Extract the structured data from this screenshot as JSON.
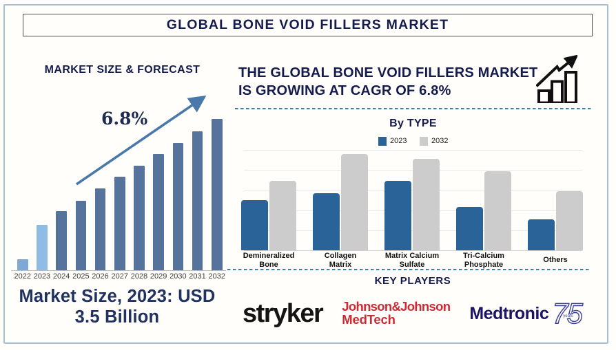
{
  "page": {
    "title": "GLOBAL BONE VOID FILLERS MARKET",
    "background_color": "#fffefa",
    "frame_border_color": "#a3c0d4",
    "accent_navy": "#141b4d",
    "dashed_divider_color": "#3e7da6"
  },
  "left_panel": {
    "heading": "MARKET SIZE & FORECAST",
    "cagr_annotation": "6.8%",
    "caption": "Market Size, 2023: USD 3.5 Billion",
    "trend_arrow_color": "#4879aa"
  },
  "right_panel": {
    "heading_line1": "THE GLOBAL BONE VOID FILLERS MARKET",
    "heading_line2": "IS GROWING AT CAGR OF 6.8%",
    "by_type_title": "By TYPE",
    "key_players_title": "KEY PLAYERS",
    "key_players": [
      {
        "name": "stryker",
        "color": "#141414"
      },
      {
        "name": "Johnson & Johnson MedTech",
        "line1": "Johnson&Johnson",
        "line2": "MedTech",
        "color": "#cf2a33"
      },
      {
        "name": "Medtronic 75 years",
        "wordmark": "Medtronic",
        "badge_number": "75",
        "badge_caption": "years",
        "wordmark_color": "#1b1464",
        "badge_color": "#3a3f9c"
      }
    ]
  },
  "chart_data": [
    {
      "type": "bar",
      "title": "MARKET SIZE & FORECAST",
      "categories": [
        "2022",
        "2023",
        "2024",
        "2025",
        "2026",
        "2027",
        "2028",
        "2029",
        "2030",
        "2031",
        "2032"
      ],
      "values": [
        7.5,
        30,
        39,
        46,
        54,
        62,
        69,
        77,
        84,
        92,
        100
      ],
      "unit": "relative bar height, tallest bar (2032) = 100",
      "annotation": "6.8% CAGR trend arrow",
      "highlight_note": "Market Size, 2023: USD 3.5 Billion",
      "bar_colors": {
        "2022": "#7ea9d4",
        "2023": "#8fbbe5",
        "default": "#56749b"
      },
      "xlabel": "",
      "ylabel": "",
      "grid": false,
      "legend": false
    },
    {
      "type": "bar",
      "title": "By TYPE",
      "categories": [
        "Demineralized Bone",
        "Collagen Matrix",
        "Matrix Calcium Sulfate",
        "Tri-Calcium Phosphate",
        "Others"
      ],
      "series": [
        {
          "name": "2023",
          "color": "#2a6397",
          "values": [
            50,
            57,
            69,
            43,
            31
          ]
        },
        {
          "name": "2032",
          "color": "#cccccc",
          "values": [
            69,
            96,
            91,
            79,
            59
          ]
        }
      ],
      "unit": "relative bar height, plot top gridline = 100",
      "xlabel": "",
      "ylabel": "",
      "grid": "horizontal",
      "legend_position": "top",
      "gridline_count": 6
    }
  ]
}
